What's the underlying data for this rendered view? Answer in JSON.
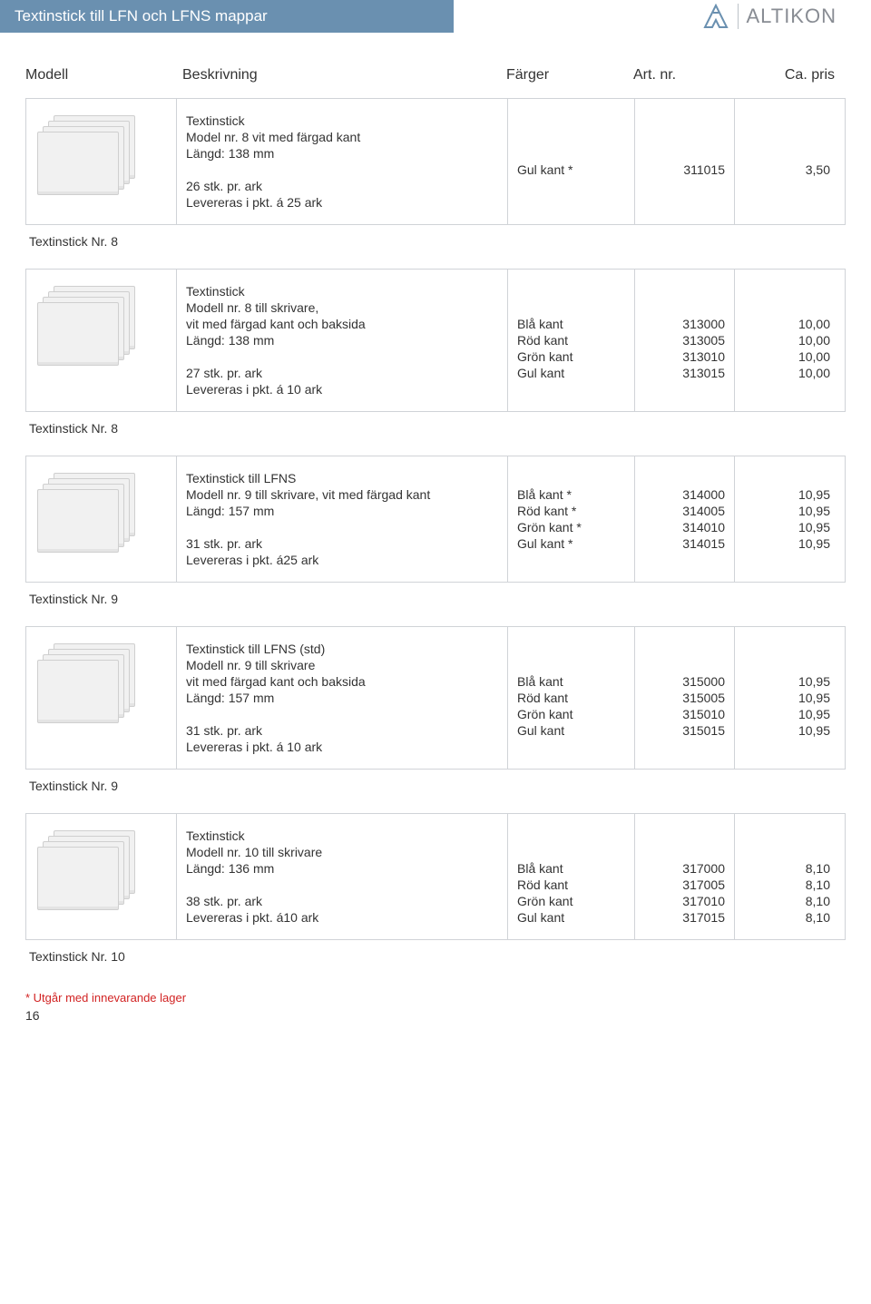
{
  "header": {
    "title": "Textinstick till LFN och LFNS mappar",
    "brand": "ALTIKON",
    "logo_color": "#6a90b0"
  },
  "columns": {
    "c1": "Modell",
    "c2": "Beskrivning",
    "c3": "Färger",
    "c4": "Art. nr.",
    "c5": "Ca. pris"
  },
  "products": [
    {
      "desc": [
        "Textinstick",
        "Model nr. 8 vit med färgad kant",
        "Längd: 138 mm",
        "",
        "26 stk. pr. ark",
        "Levereras i pkt. á 25 ark"
      ],
      "colors": [
        "",
        "",
        "",
        "Gul kant *"
      ],
      "arts": [
        "",
        "",
        "",
        "311015"
      ],
      "prices": [
        "",
        "",
        "",
        "3,50"
      ],
      "below": "Textinstick Nr. 8"
    },
    {
      "desc": [
        "Textinstick",
        "Modell nr. 8 till skrivare,",
        "vit med färgad kant och baksida",
        "Längd: 138 mm",
        "",
        "27 stk. pr. ark",
        "Levereras i pkt. á 10 ark"
      ],
      "colors": [
        "",
        "",
        "Blå kant",
        "Röd kant",
        "Grön kant",
        "Gul kant"
      ],
      "arts": [
        "",
        "",
        "313000",
        "313005",
        "313010",
        "313015"
      ],
      "prices": [
        "",
        "",
        "10,00",
        "10,00",
        "10,00",
        "10,00"
      ],
      "below": "Textinstick Nr. 8"
    },
    {
      "desc": [
        "Textinstick till LFNS",
        "Modell nr. 9 till skrivare, vit med färgad kant",
        "Längd: 157 mm",
        "",
        "31 stk. pr. ark",
        "Levereras i pkt. á25 ark"
      ],
      "colors": [
        "",
        "Blå kant *",
        "Röd kant *",
        "Grön kant *",
        "Gul kant *"
      ],
      "arts": [
        "",
        "314000",
        "314005",
        "314010",
        "314015"
      ],
      "prices": [
        "",
        "10,95",
        "10,95",
        "10,95",
        "10,95"
      ],
      "below": "Textinstick Nr. 9"
    },
    {
      "desc": [
        "Textinstick till LFNS (std)",
        "Modell nr. 9 till skrivare",
        "vit med färgad kant och baksida",
        "Längd: 157 mm",
        "",
        "31 stk. pr. ark",
        "Levereras i pkt. á 10 ark"
      ],
      "colors": [
        "",
        "",
        "Blå kant",
        "Röd kant",
        "Grön kant",
        "Gul kant"
      ],
      "arts": [
        "",
        "",
        "315000",
        "315005",
        "315010",
        "315015"
      ],
      "prices": [
        "",
        "",
        "10,95",
        "10,95",
        "10,95",
        "10,95"
      ],
      "below": "Textinstick Nr. 9"
    },
    {
      "desc": [
        "Textinstick",
        "Modell nr. 10 till skrivare",
        "Längd: 136 mm",
        "",
        "38 stk. pr. ark",
        "Levereras i pkt. á10 ark"
      ],
      "colors": [
        "",
        "",
        "Blå kant",
        "Röd kant",
        "Grön kant",
        "Gul kant"
      ],
      "arts": [
        "",
        "",
        "317000",
        "317005",
        "317010",
        "317015"
      ],
      "prices": [
        "",
        "",
        "8,10",
        "8,10",
        "8,10",
        "8,10"
      ],
      "below": "Textinstick Nr. 10"
    }
  ],
  "footnote": "* Utgår med innevarande lager",
  "pagenum": "16",
  "styling": {
    "title_bg": "#6a90b0",
    "title_fg": "#ffffff",
    "border_color": "#d0d3d7",
    "footnote_color": "#d22323",
    "body_fg": "#333333",
    "brand_fg": "#888c93"
  }
}
